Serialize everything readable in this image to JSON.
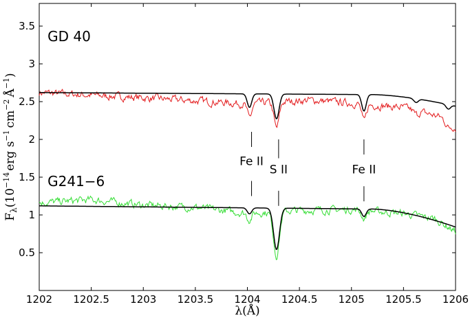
{
  "chart_data": {
    "type": "line",
    "xlabel": "λ(Å)",
    "ylabel": "F_λ(10^-14 erg s^-1 cm^-2 Å^-1)",
    "ylabel_parts": {
      "f": "F",
      "lambda": "λ",
      "base": "(10",
      "exp1": "−14",
      "erg": "erg s",
      "exp2": "−1",
      "cm": "cm",
      "exp3": "−2",
      "ang": "Å",
      "exp4": "−1",
      "close": ")"
    },
    "xlim": [
      1202,
      1206
    ],
    "ylim": [
      0,
      3.8
    ],
    "x_ticks": [
      1202,
      1202.5,
      1203,
      1203.5,
      1204,
      1204.5,
      1205,
      1205.5,
      1206
    ],
    "x_tick_labels": [
      "1202",
      "1202.5",
      "1203",
      "1203.5",
      "1204",
      "1204.5",
      "1205",
      "1205.5",
      "1206"
    ],
    "y_ticks": [
      0.5,
      1,
      1.5,
      2,
      2.5,
      3,
      3.5
    ],
    "y_tick_labels": [
      "0.5",
      "1",
      "1.5",
      "2",
      "2.5",
      "3",
      "3.5"
    ],
    "stars": [
      {
        "name": "GD 40",
        "label_at": [
          1202.08,
          3.3
        ],
        "observed_color": "#e31a1c",
        "model_color": "#000000",
        "continuum": 2.62,
        "slope_end": 2.44,
        "absorption_lines": [
          {
            "x": 1204.02,
            "depth": 0.18,
            "width": 0.03
          },
          {
            "x": 1204.28,
            "depth": 0.33,
            "width": 0.035
          },
          {
            "x": 1205.12,
            "depth": 0.22,
            "width": 0.03
          },
          {
            "x": 1205.62,
            "depth": 0.05,
            "width": 0.03
          },
          {
            "x": 1205.93,
            "depth": 0.06,
            "width": 0.03
          }
        ],
        "observed_trend": [
          [
            1202,
            2.62
          ],
          [
            1203,
            2.55
          ],
          [
            1204,
            2.47
          ],
          [
            1204.6,
            2.52
          ],
          [
            1205.0,
            2.48
          ],
          [
            1205.5,
            2.42
          ],
          [
            1205.85,
            2.3
          ],
          [
            1206,
            2.15
          ]
        ],
        "noise_amp": 0.05
      },
      {
        "name": "G241−6",
        "label_at": [
          1202.08,
          1.38
        ],
        "observed_color": "#33dd33",
        "model_color": "#000000",
        "continuum": 1.12,
        "slope_end": 0.84,
        "absorption_lines": [
          {
            "x": 1204.02,
            "depth": 0.08,
            "width": 0.03
          },
          {
            "x": 1204.28,
            "depth": 0.55,
            "width": 0.04
          },
          {
            "x": 1205.12,
            "depth": 0.1,
            "width": 0.03
          }
        ],
        "observed_trend": [
          [
            1202,
            1.16
          ],
          [
            1202.5,
            1.2
          ],
          [
            1203,
            1.13
          ],
          [
            1203.5,
            1.1
          ],
          [
            1204,
            1.02
          ],
          [
            1204.5,
            1.06
          ],
          [
            1205,
            1.07
          ],
          [
            1205.5,
            1.02
          ],
          [
            1205.8,
            0.95
          ],
          [
            1206,
            0.78
          ]
        ],
        "noise_amp": 0.05
      }
    ],
    "line_markers": [
      {
        "label": "Fe II",
        "x": 1204.04,
        "upper": [
          2.1,
          1.9
        ],
        "lower": [
          1.45,
          1.25
        ],
        "label_y": 1.66
      },
      {
        "label": "S II",
        "x": 1204.3,
        "upper": [
          2.0,
          1.75
        ],
        "lower": [
          1.32,
          1.12
        ],
        "label_y": 1.55
      },
      {
        "label": "Fe II",
        "x": 1205.12,
        "upper": [
          2.0,
          1.8
        ],
        "lower": [
          1.38,
          1.18
        ],
        "label_y": 1.55
      }
    ]
  }
}
